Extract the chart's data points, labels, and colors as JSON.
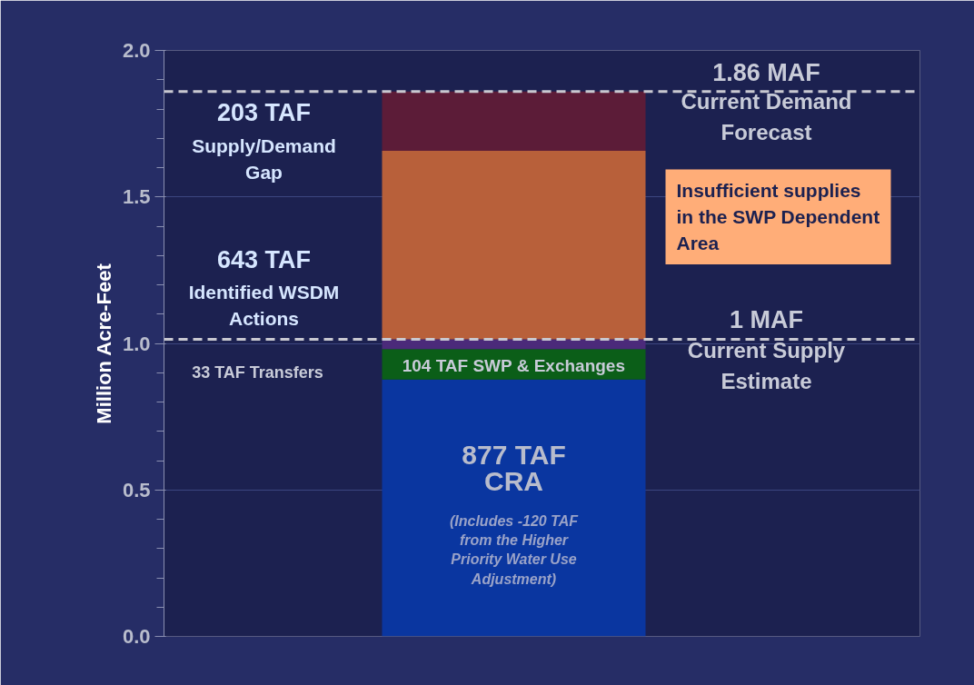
{
  "chart_data": {
    "type": "bar",
    "stacked": true,
    "categories": [
      null
    ],
    "series": [
      {
        "color": "#0a36a0",
        "values": [
          0.877
        ]
      },
      {
        "color": "#0b5e18",
        "values": [
          0.104
        ]
      },
      {
        "color": "#4b2a7a",
        "values": [
          0.033
        ]
      },
      {
        "color": "#b8603a",
        "values": [
          0.643
        ]
      },
      {
        "color": "#5c1c38",
        "values": [
          0.203
        ]
      }
    ],
    "ylabel": "Million Acre-Feet",
    "ylim": [
      0,
      2
    ],
    "yticks": [
      {
        "value": 0,
        "label": "0.0"
      },
      {
        "value": 0.5,
        "label": "0.5"
      },
      {
        "value": 1,
        "label": "1.0"
      },
      {
        "value": 1.5,
        "label": "1.5"
      },
      {
        "value": 2,
        "label": "2.0"
      }
    ],
    "grid": "y",
    "ref_lines": [
      {
        "axis": "y",
        "value": 1.86,
        "label": "1.86 MAF",
        "color": "#c8c8d0",
        "line_style": "dashed"
      },
      {
        "axis": "y",
        "value": 1.014,
        "label": "1 MAF",
        "color": "#c8c8d0",
        "line_style": "dashed"
      }
    ],
    "annotations": [
      "203 TAF",
      "Supply/Demand Gap",
      "643 TAF",
      "Identified WSDM Actions",
      "33 TAF Transfers",
      "104 TAF SWP & Exchanges",
      "877 TAF",
      "CRA",
      "(Includes -120 TAF from the Higher Priority Water Use Adjustment)",
      "Current Demand Forecast",
      "Current Supply Estimate",
      "Insufficient supplies in the SWP Dependent Area"
    ]
  }
}
